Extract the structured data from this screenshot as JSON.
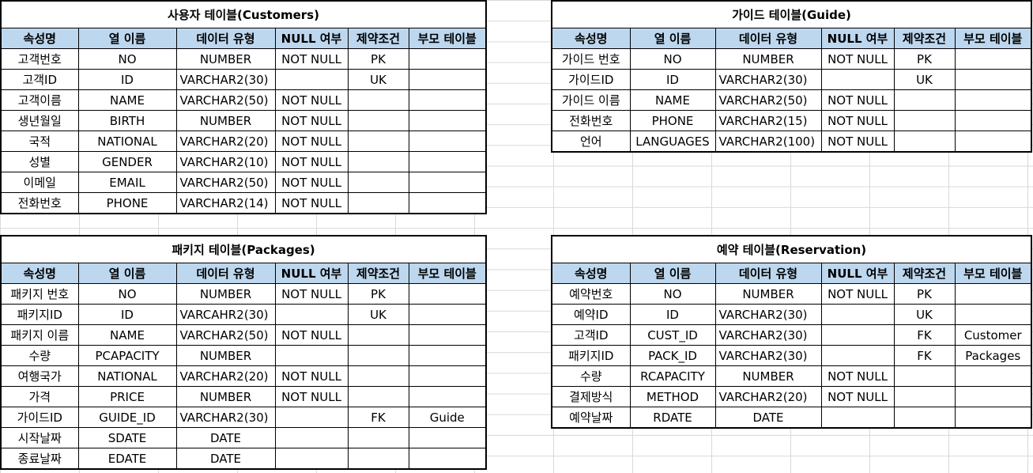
{
  "headers": [
    "속성명",
    "열 이름",
    "데이터 유형",
    "NULL 여부",
    "제약조건",
    "부모 테이블"
  ],
  "tables": [
    {
      "key": "customers",
      "title": "사용자 테이블(Customers)",
      "rows": [
        [
          "고객번호",
          "NO",
          "NUMBER",
          "NOT NULL",
          "PK",
          ""
        ],
        [
          "고객ID",
          "ID",
          "VARCHAR2(30)",
          "",
          "UK",
          ""
        ],
        [
          "고객이름",
          "NAME",
          "VARCHAR2(50)",
          "NOT NULL",
          "",
          ""
        ],
        [
          "생년월일",
          "BIRTH",
          "NUMBER",
          "NOT NULL",
          "",
          ""
        ],
        [
          "국적",
          "NATIONAL",
          "VARCHAR2(20)",
          "NOT NULL",
          "",
          ""
        ],
        [
          "성별",
          "GENDER",
          "VARCHAR2(10)",
          "NOT NULL",
          "",
          ""
        ],
        [
          "이메일",
          "EMAIL",
          "VARCHAR2(50)",
          "NOT NULL",
          "",
          ""
        ],
        [
          "전화번호",
          "PHONE",
          "VARCHAR2(14)",
          "NOT NULL",
          "",
          ""
        ]
      ]
    },
    {
      "key": "guide",
      "title": "가이드 테이블(Guide)",
      "rows": [
        [
          "가이드 번호",
          "NO",
          "NUMBER",
          "NOT NULL",
          "PK",
          ""
        ],
        [
          "가이드ID",
          "ID",
          "VARCHAR2(30)",
          "",
          "UK",
          ""
        ],
        [
          "가이드 이름",
          "NAME",
          "VARCHAR2(50)",
          "NOT NULL",
          "",
          ""
        ],
        [
          "전화번호",
          "PHONE",
          "VARCHAR2(15)",
          "NOT NULL",
          "",
          ""
        ],
        [
          "언어",
          "LANGUAGES",
          "VARCHAR2(100)",
          "NOT NULL",
          "",
          ""
        ]
      ]
    },
    {
      "key": "packages",
      "title": "패키지 테이블(Packages)",
      "rows": [
        [
          "패키지 번호",
          "NO",
          "NUMBER",
          "NOT NULL",
          "PK",
          ""
        ],
        [
          "패키지ID",
          "ID",
          "VARCAHR2(30)",
          "",
          "UK",
          ""
        ],
        [
          "패키지 이름",
          "NAME",
          "VARCHAR2(50)",
          "NOT NULL",
          "",
          ""
        ],
        [
          "수량",
          "PCAPACITY",
          "NUMBER",
          "",
          "",
          ""
        ],
        [
          "여행국가",
          "NATIONAL",
          "VARCHAR2(20)",
          "NOT NULL",
          "",
          ""
        ],
        [
          "가격",
          "PRICE",
          "NUMBER",
          "NOT NULL",
          "",
          ""
        ],
        [
          "가이드ID",
          "GUIDE_ID",
          "VARCHAR2(30)",
          "",
          "FK",
          "Guide"
        ],
        [
          "시작날짜",
          "SDATE",
          "DATE",
          "",
          "",
          ""
        ],
        [
          "종료날짜",
          "EDATE",
          "DATE",
          "",
          "",
          ""
        ]
      ]
    },
    {
      "key": "reservation",
      "title": "예약 테이블(Reservation)",
      "rows": [
        [
          "예약번호",
          "NO",
          "NUMBER",
          "NOT NULL",
          "PK",
          ""
        ],
        [
          "예약ID",
          "ID",
          "VARCHAR2(30)",
          "",
          "UK",
          ""
        ],
        [
          "고객ID",
          "CUST_ID",
          "VARCHAR2(30)",
          "",
          "FK",
          "Customer"
        ],
        [
          "패키지ID",
          "PACK_ID",
          "VARCHAR2(30)",
          "",
          "FK",
          "Packages"
        ],
        [
          "수량",
          "RCAPACITY",
          "NUMBER",
          "NOT NULL",
          "",
          ""
        ],
        [
          "결제방식",
          "METHOD",
          "VARCHAR2(20)",
          "NOT NULL",
          "",
          ""
        ],
        [
          "예약날짜",
          "RDATE",
          "DATE",
          "",
          "",
          ""
        ]
      ]
    }
  ],
  "colors": {
    "header_bg": "#bdd7ee",
    "border": "#000000",
    "grid": "#d9d9d9"
  }
}
